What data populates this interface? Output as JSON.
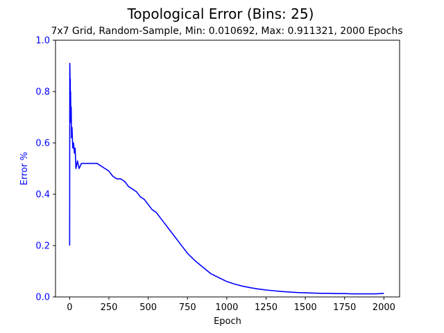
{
  "colors": {
    "series": "#0000ff",
    "axis_left": "#0000ff",
    "frame": "#000000",
    "background": "#ffffff"
  },
  "chart_data": {
    "type": "line",
    "title": "Topological Error (Bins: 25)",
    "subtitle": "7x7 Grid, Random-Sample, Min: 0.010692, Max: 0.911321, 2000 Epochs",
    "xlabel": "Epoch",
    "ylabel": "Error %",
    "xlim": [
      -90,
      2100
    ],
    "ylim": [
      0,
      1.0
    ],
    "xticks": [
      0,
      250,
      500,
      750,
      1000,
      1250,
      1500,
      1750,
      2000
    ],
    "yticks": [
      0.0,
      0.2,
      0.4,
      0.6,
      0.8,
      1.0
    ],
    "grid": false,
    "series": [
      {
        "color": "#0000ff",
        "x": [
          0,
          1,
          2,
          3,
          4,
          5,
          6,
          8,
          10,
          12,
          15,
          20,
          25,
          30,
          35,
          40,
          50,
          60,
          75,
          100,
          125,
          150,
          175,
          200,
          225,
          250,
          275,
          300,
          325,
          350,
          375,
          400,
          425,
          450,
          475,
          500,
          525,
          550,
          575,
          600,
          625,
          650,
          675,
          700,
          725,
          750,
          775,
          800,
          850,
          900,
          950,
          1000,
          1050,
          1100,
          1150,
          1200,
          1250,
          1300,
          1350,
          1400,
          1450,
          1500,
          1550,
          1600,
          1650,
          1700,
          1750,
          1800,
          1850,
          1900,
          1950,
          2000
        ],
        "y": [
          0.2,
          0.91,
          0.88,
          0.72,
          0.85,
          0.7,
          0.8,
          0.68,
          0.74,
          0.62,
          0.66,
          0.58,
          0.6,
          0.56,
          0.58,
          0.5,
          0.53,
          0.5,
          0.52,
          0.52,
          0.52,
          0.52,
          0.52,
          0.51,
          0.5,
          0.49,
          0.47,
          0.46,
          0.46,
          0.45,
          0.43,
          0.42,
          0.41,
          0.39,
          0.38,
          0.36,
          0.34,
          0.33,
          0.31,
          0.29,
          0.27,
          0.25,
          0.23,
          0.21,
          0.19,
          0.17,
          0.155,
          0.14,
          0.115,
          0.09,
          0.075,
          0.06,
          0.05,
          0.042,
          0.036,
          0.031,
          0.027,
          0.024,
          0.021,
          0.019,
          0.017,
          0.016,
          0.015,
          0.014,
          0.014,
          0.013,
          0.013,
          0.012,
          0.012,
          0.012,
          0.012,
          0.014
        ]
      }
    ]
  }
}
